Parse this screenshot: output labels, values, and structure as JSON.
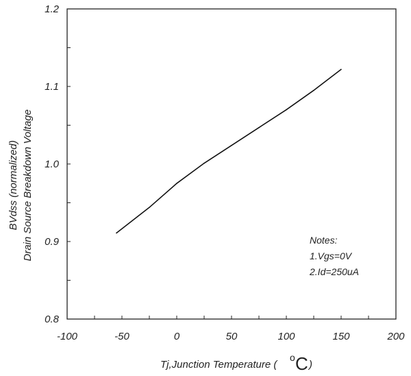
{
  "chart_data": {
    "type": "line",
    "x": [
      -55,
      -25,
      0,
      25,
      50,
      75,
      100,
      125,
      150
    ],
    "series": [
      {
        "values": [
          0.911,
          0.944,
          0.975,
          1.001,
          1.024,
          1.047,
          1.07,
          1.095,
          1.122
        ]
      }
    ],
    "xlim": [
      -100,
      200
    ],
    "ylim": [
      0.8,
      1.2
    ],
    "x_ticks": [
      "-100",
      "-50",
      "0",
      "50",
      "100",
      "150",
      "200"
    ],
    "y_ticks": [
      "0.8",
      "0.9",
      "1.0",
      "1.1",
      "1.2"
    ],
    "xlabel_text": "Tj,Junction Temperature (",
    "xlabel_unit_sup": "o",
    "xlabel_unit": "C",
    "xlabel_close": ")",
    "ylabel_line1": "BVdss (normalized)",
    "ylabel_line2": "Drain Source Breakdown Voltage",
    "notes": [
      "Notes:",
      "1.Vgs=0V",
      "2.Id=250uA"
    ],
    "grid": false,
    "line_color": "#111111"
  }
}
